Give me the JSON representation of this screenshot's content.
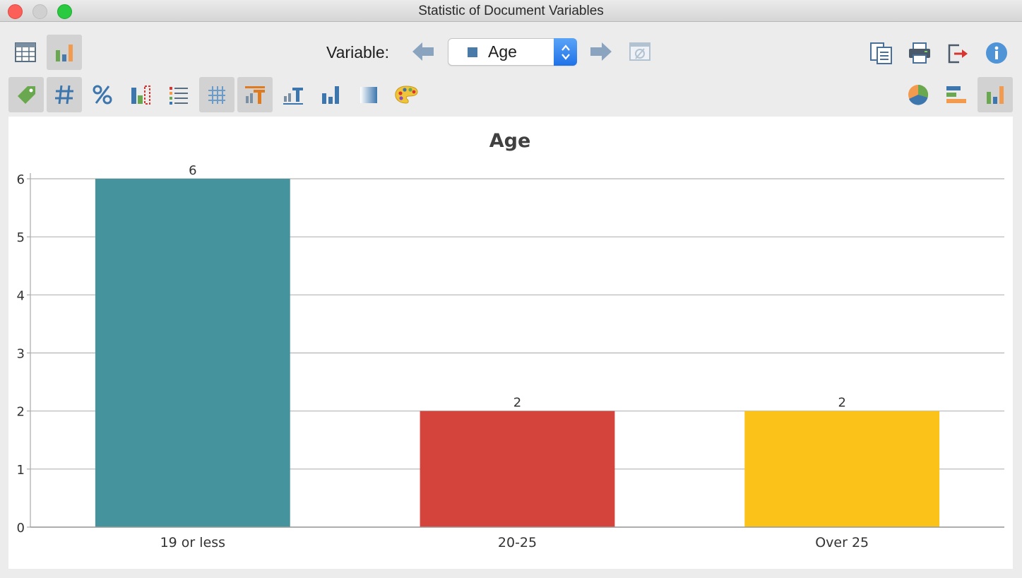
{
  "window": {
    "title": "Statistic of Document Variables"
  },
  "toolbar": {
    "top_left": [
      {
        "icon": "table-view-icon",
        "active": false
      },
      {
        "icon": "chart-view-icon",
        "active": true
      }
    ],
    "variable_label": "Variable:",
    "variable_value": "Age",
    "variable_swatch_color": "#4a7aa8",
    "second_row": [
      {
        "icon": "label-tag-icon",
        "active": true
      },
      {
        "icon": "frequency-number-icon",
        "active": true
      },
      {
        "icon": "percent-icon",
        "active": false
      },
      {
        "icon": "missing-values-chart-icon",
        "active": false
      },
      {
        "icon": "legend-list-icon",
        "active": false
      },
      {
        "icon": "grid-lines-icon",
        "active": true
      },
      {
        "icon": "chart-title-icon",
        "active": true
      },
      {
        "icon": "axis-labels-icon",
        "active": false
      },
      {
        "icon": "bar-chart-style-icon",
        "active": false
      },
      {
        "icon": "gradient-icon",
        "active": false
      },
      {
        "icon": "color-palette-icon",
        "active": false
      }
    ],
    "right_icons": [
      "copy-icon",
      "print-icon",
      "export-icon",
      "info-icon"
    ],
    "chart_types": [
      {
        "icon": "pie-chart-icon",
        "active": false
      },
      {
        "icon": "horizontal-bar-chart-icon",
        "active": false
      },
      {
        "icon": "vertical-bar-chart-icon",
        "active": true
      }
    ]
  },
  "chart_data": {
    "type": "bar",
    "title": "Age",
    "categories": [
      "19 or less",
      "20-25",
      "Over 25"
    ],
    "values": [
      6,
      2,
      2
    ],
    "colors": [
      "#45939c",
      "#d5433d",
      "#fbc21a"
    ],
    "ylim": [
      0,
      6
    ],
    "yticks": [
      0,
      1,
      2,
      3,
      4,
      5,
      6
    ],
    "grid": true,
    "data_labels": true
  }
}
